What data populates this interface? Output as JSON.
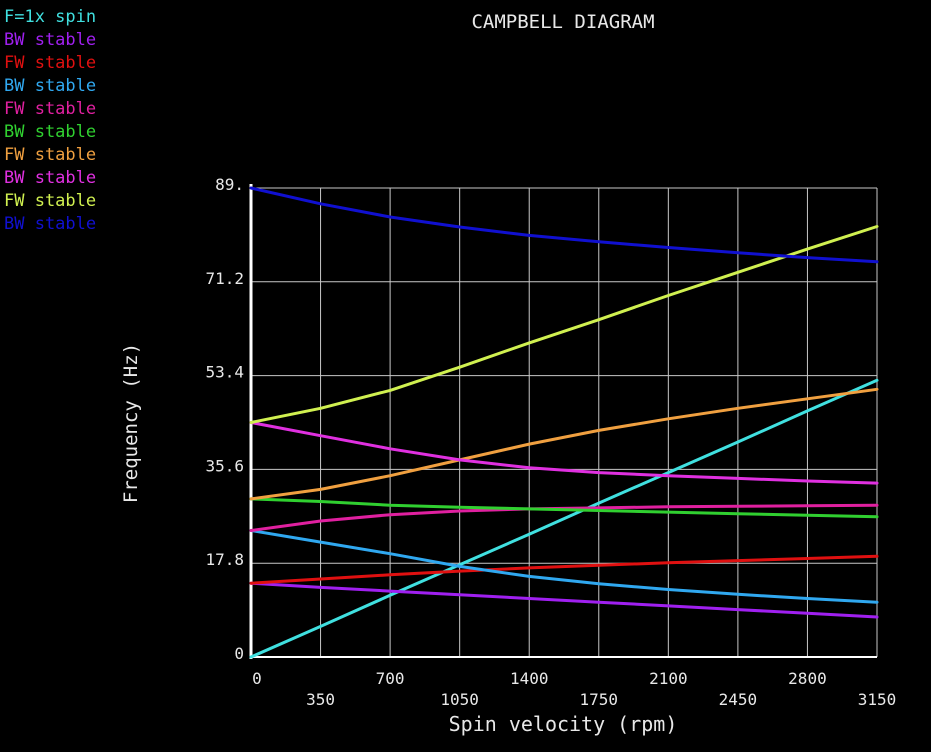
{
  "chart_data": {
    "type": "line",
    "title": "CAMPBELL DIAGRAM",
    "xlabel": "Spin velocity (rpm)",
    "ylabel": "Frequency (Hz)",
    "xlim": [
      0,
      3150
    ],
    "ylim": [
      0,
      89
    ],
    "x_ticks_upper": [
      "0",
      "700",
      "1400",
      "2100",
      "2800"
    ],
    "x_ticks_lower": [
      "350",
      "1050",
      "1750",
      "2450",
      "3150"
    ],
    "x_tick_values_upper": [
      0,
      700,
      1400,
      2100,
      2800
    ],
    "x_tick_values_lower": [
      350,
      1050,
      1750,
      2450,
      3150
    ],
    "y_ticks": [
      "0",
      "17.8",
      "35.6",
      "53.4",
      "71.2",
      "89."
    ],
    "y_tick_values": [
      0,
      17.8,
      35.6,
      53.4,
      71.2,
      89
    ],
    "grid": true,
    "legend_position": "top-left",
    "x": [
      0,
      350,
      700,
      1050,
      1400,
      1750,
      2100,
      2450,
      2800,
      3150
    ],
    "series": [
      {
        "name": "F=1x spin",
        "color": "#40e0e0",
        "values": [
          0,
          5.8,
          11.7,
          17.5,
          23.3,
          29.2,
          35.0,
          40.8,
          46.7,
          52.5
        ]
      },
      {
        "name": "BW stable",
        "color": "#a020f0",
        "values": [
          14.0,
          13.2,
          12.5,
          11.8,
          11.1,
          10.4,
          9.7,
          9.0,
          8.3,
          7.6
        ]
      },
      {
        "name": "FW stable",
        "color": "#e01010",
        "values": [
          14.0,
          14.8,
          15.6,
          16.3,
          16.9,
          17.4,
          17.9,
          18.3,
          18.7,
          19.1
        ]
      },
      {
        "name": "BW stable",
        "color": "#30a8f0",
        "values": [
          24.0,
          21.8,
          19.6,
          17.2,
          15.3,
          13.9,
          12.8,
          11.9,
          11.1,
          10.4
        ]
      },
      {
        "name": "FW stable",
        "color": "#e020a0",
        "values": [
          24.0,
          25.8,
          27.0,
          27.7,
          28.1,
          28.3,
          28.5,
          28.6,
          28.7,
          28.8
        ]
      },
      {
        "name": "BW stable",
        "color": "#30d030",
        "values": [
          30.0,
          29.5,
          28.8,
          28.4,
          28.1,
          27.8,
          27.5,
          27.2,
          26.9,
          26.6
        ]
      },
      {
        "name": "FW stable",
        "color": "#f0a040",
        "values": [
          30.0,
          31.8,
          34.4,
          37.4,
          40.4,
          43.0,
          45.2,
          47.2,
          49.0,
          50.8
        ]
      },
      {
        "name": "BW stable",
        "color": "#e030e0",
        "values": [
          44.5,
          42.0,
          39.5,
          37.4,
          35.9,
          35.0,
          34.4,
          33.9,
          33.4,
          33.0
        ]
      },
      {
        "name": "FW stable",
        "color": "#d0f050",
        "values": [
          44.5,
          47.2,
          50.6,
          55.0,
          59.6,
          64.0,
          68.6,
          73.0,
          77.4,
          81.7
        ]
      },
      {
        "name": "BW stable",
        "color": "#1010d0",
        "values": [
          89.0,
          86.0,
          83.5,
          81.6,
          80.0,
          78.8,
          77.7,
          76.7,
          75.8,
          75.0
        ]
      }
    ]
  }
}
